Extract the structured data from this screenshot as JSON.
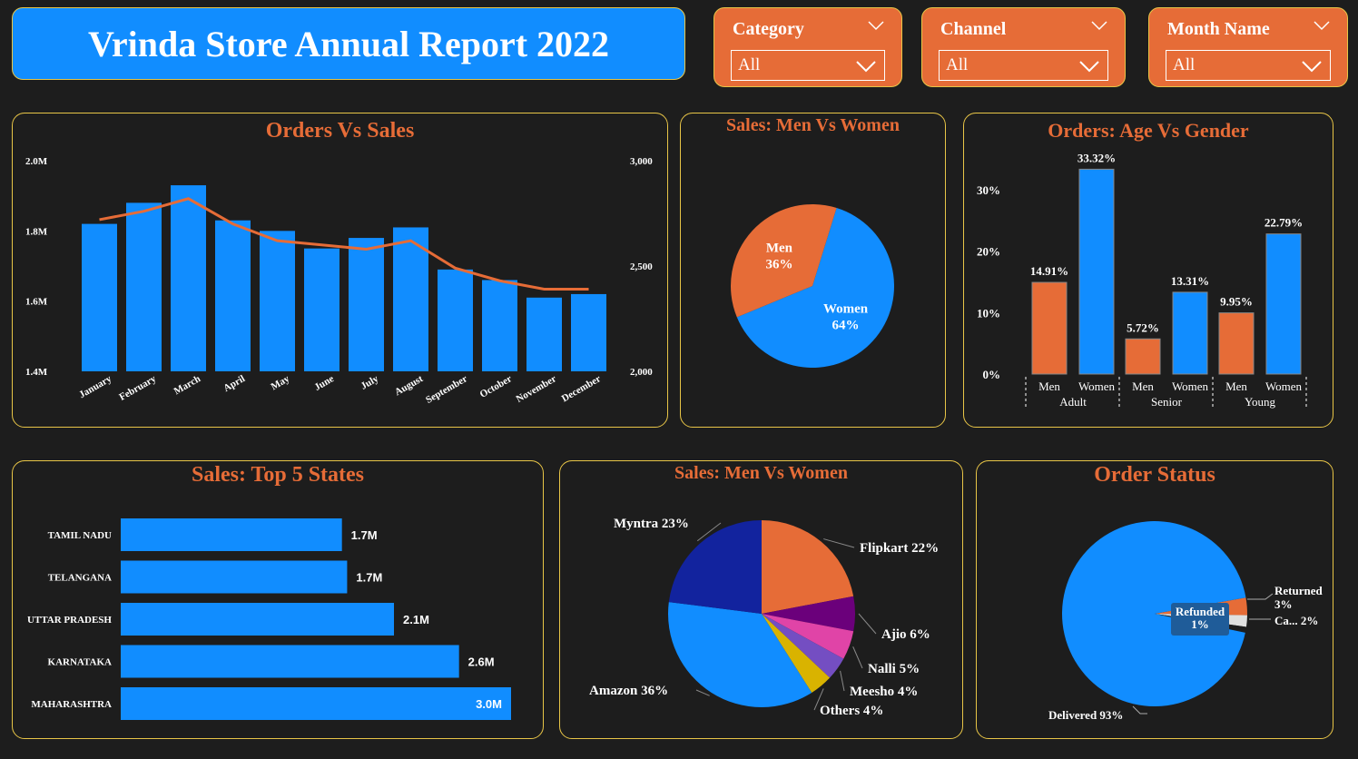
{
  "header": {
    "title": "Vrinda Store Annual Report 2022"
  },
  "colors": {
    "accent": "#e66c37",
    "blue": "#118dff",
    "border": "#e8c547",
    "background": "#1d1d1d"
  },
  "slicers": [
    {
      "title": "Category",
      "value": "All"
    },
    {
      "title": "Channel",
      "value": "All"
    },
    {
      "title": "Month Name",
      "value": "All"
    }
  ],
  "panels": {
    "orders_vs_sales": {
      "title": "Orders Vs Sales"
    },
    "sales_men_women": {
      "title": "Sales: Men Vs Women"
    },
    "orders_age_gender": {
      "title": "Orders: Age Vs Gender"
    },
    "top_states": {
      "title": "Sales: Top 5 States"
    },
    "channels": {
      "title": "Sales: Men Vs Women"
    },
    "order_status": {
      "title": "Order Status"
    }
  },
  "chart_data": [
    {
      "id": "orders_vs_sales",
      "type": "bar",
      "title": "Orders Vs Sales",
      "categories": [
        "January",
        "February",
        "March",
        "April",
        "May",
        "June",
        "July",
        "August",
        "September",
        "October",
        "November",
        "December"
      ],
      "series": [
        {
          "kind": "bar",
          "axis": "left",
          "color": "#118dff",
          "values": [
            1.82,
            1.88,
            1.93,
            1.83,
            1.8,
            1.75,
            1.78,
            1.81,
            1.69,
            1.66,
            1.61,
            1.62
          ]
        },
        {
          "kind": "line",
          "axis": "right",
          "color": "#e66c37",
          "values": [
            2720,
            2760,
            2820,
            2700,
            2620,
            2600,
            2580,
            2620,
            2490,
            2430,
            2390,
            2390
          ]
        }
      ],
      "left_axis": {
        "ticks": [
          "1.4M",
          "1.6M",
          "1.8M",
          "2.0M"
        ],
        "ylim": [
          1.4,
          2.0
        ]
      },
      "right_axis": {
        "ticks": [
          "2,000",
          "2,500",
          "3,000"
        ],
        "ylim": [
          2000,
          3000
        ]
      },
      "grid": false
    },
    {
      "id": "sales_men_women",
      "type": "pie",
      "title": "Sales: Men Vs Women",
      "slices": [
        {
          "label": "Women",
          "pct_label": "64%",
          "value": 64,
          "color": "#118dff"
        },
        {
          "label": "Men",
          "pct_label": "36%",
          "value": 36,
          "color": "#e66c37"
        }
      ]
    },
    {
      "id": "orders_age_gender",
      "type": "bar",
      "title": "Orders: Age Vs Gender",
      "groups": [
        {
          "name": "Adult",
          "bars": [
            {
              "label": "Men",
              "value": 14.91,
              "text": "14.91%",
              "color": "#e66c37"
            },
            {
              "label": "Women",
              "value": 33.32,
              "text": "33.32%",
              "color": "#118dff"
            }
          ]
        },
        {
          "name": "Senior",
          "bars": [
            {
              "label": "Men",
              "value": 5.72,
              "text": "5.72%",
              "color": "#e66c37"
            },
            {
              "label": "Women",
              "value": 13.31,
              "text": "13.31%",
              "color": "#118dff"
            }
          ]
        },
        {
          "name": "Young",
          "bars": [
            {
              "label": "Men",
              "value": 9.95,
              "text": "9.95%",
              "color": "#e66c37"
            },
            {
              "label": "Women",
              "value": 22.79,
              "text": "22.79%",
              "color": "#118dff"
            }
          ]
        }
      ],
      "y_ticks": [
        "0%",
        "10%",
        "20%",
        "30%"
      ],
      "ylim": [
        0,
        35
      ]
    },
    {
      "id": "top_states",
      "type": "bar",
      "orientation": "horizontal",
      "title": "Sales: Top 5 States",
      "categories": [
        "TAMIL NADU",
        "TELANGANA",
        "UTTAR PRADESH",
        "KARNATAKA",
        "MAHARASHTRA"
      ],
      "values": [
        1.7,
        1.74,
        2.1,
        2.6,
        3.0
      ],
      "labels": [
        "1.7M",
        "1.7M",
        "2.1M",
        "2.6M",
        "3.0M"
      ],
      "xlim": [
        0,
        3.0
      ]
    },
    {
      "id": "channels",
      "type": "pie",
      "title": "Sales: Men Vs Women",
      "slices": [
        {
          "label": "Flipkart 22%",
          "value": 22,
          "color": "#e66c37"
        },
        {
          "label": "Ajio 6%",
          "value": 6,
          "color": "#6b007b"
        },
        {
          "label": "Nalli 5%",
          "value": 5,
          "color": "#e044a7"
        },
        {
          "label": "Meesho 4%",
          "value": 4,
          "color": "#744ec2"
        },
        {
          "label": "Others 4%",
          "value": 4,
          "color": "#d9b300"
        },
        {
          "label": "Amazon 36%",
          "value": 36,
          "color": "#118dff"
        },
        {
          "label": "Myntra 23%",
          "value": 23,
          "color": "#12239e"
        }
      ]
    },
    {
      "id": "order_status",
      "type": "pie",
      "title": "Order Status",
      "slices": [
        {
          "label": "Returned",
          "pct_label": "3%",
          "value": 3,
          "color": "#e66c37"
        },
        {
          "label": "Ca... 2%",
          "value": 2,
          "color": "#e0e0e0"
        },
        {
          "label": "Refunded",
          "pct_label": "1%",
          "value": 1,
          "color": "#1d1d1d"
        },
        {
          "label": "Delivered 93%",
          "value": 93,
          "color": "#118dff"
        }
      ]
    }
  ]
}
